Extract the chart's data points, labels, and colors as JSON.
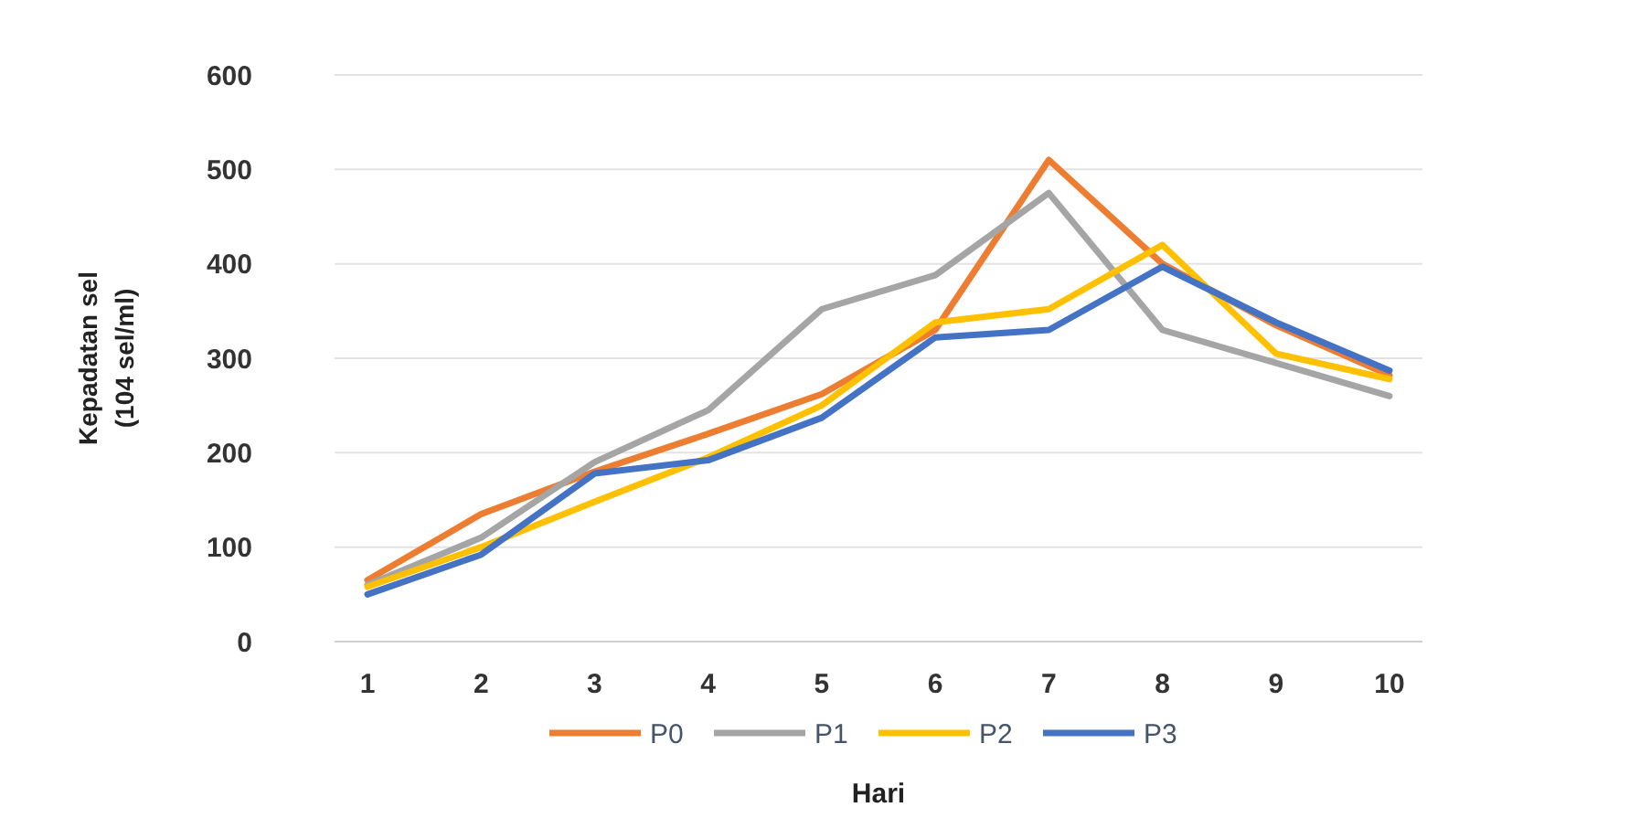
{
  "chart_data": {
    "type": "line",
    "xlabel": "Hari",
    "ylabel": "Kepadatan sel\n(104 sel/ml)",
    "categories": [
      "1",
      "2",
      "3",
      "4",
      "5",
      "6",
      "7",
      "8",
      "9",
      "10"
    ],
    "series": [
      {
        "name": "P0",
        "color": "#ed7d31",
        "values": [
          65,
          135,
          180,
          220,
          262,
          330,
          510,
          400,
          335,
          282
        ]
      },
      {
        "name": "P1",
        "color": "#a5a5a5",
        "values": [
          60,
          110,
          190,
          245,
          352,
          388,
          475,
          330,
          295,
          260
        ]
      },
      {
        "name": "P2",
        "color": "#ffc000",
        "values": [
          58,
          100,
          148,
          195,
          250,
          338,
          352,
          420,
          305,
          278
        ]
      },
      {
        "name": "P3",
        "color": "#4472c4",
        "values": [
          50,
          92,
          178,
          192,
          237,
          322,
          330,
          397,
          338,
          287
        ]
      }
    ],
    "ylim": [
      0,
      600
    ],
    "yticks": [
      0,
      100,
      200,
      300,
      400,
      500,
      600
    ],
    "grid": "y",
    "legend": "bottom",
    "marker": "none",
    "line_style": "solid"
  }
}
